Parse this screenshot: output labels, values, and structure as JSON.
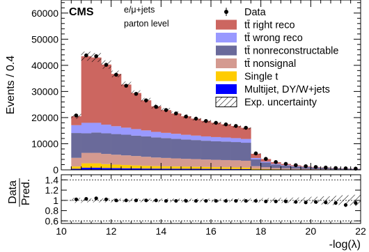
{
  "chart_data": {
    "type": "bar",
    "subtype": "stacked-histogram-with-ratio",
    "experiment_label": "CMS",
    "annotations": [
      "e/μ+jets",
      "parton level"
    ],
    "xlabel": "-log(λ)",
    "ylabel": "Events / 0.4",
    "ratio_ylabel_top": "Data",
    "ratio_ylabel_bottom": "Pred.",
    "xlim": [
      10,
      22
    ],
    "ylim": [
      0,
      65000
    ],
    "ratio_ylim": [
      0.55,
      1.5
    ],
    "x_ticks": [
      10,
      12,
      14,
      16,
      18,
      20,
      22
    ],
    "y_ticks": [
      0,
      10000,
      20000,
      30000,
      40000,
      50000,
      60000
    ],
    "y_tick_labels": [
      "0",
      "10000",
      "20000",
      "30000",
      "40000",
      "50000",
      "60000"
    ],
    "ratio_ticks": [
      0.6,
      0.8,
      1,
      1.2,
      1.4
    ],
    "ratio_tick_labels": [
      "0.6",
      "0.8",
      "1",
      "1.2",
      "1.4"
    ],
    "ratio_reference_lines": [
      0.6,
      1.0,
      1.4
    ],
    "bin_edges": [
      10.4,
      10.8,
      11.2,
      11.6,
      12.0,
      12.4,
      12.8,
      13.2,
      13.6,
      14.0,
      14.4,
      14.8,
      15.2,
      15.6,
      16.0,
      16.4,
      16.8,
      17.2,
      17.6,
      18.0,
      18.4,
      18.8,
      19.2,
      19.6,
      20.0,
      20.4,
      20.8,
      21.2,
      21.6,
      22.0
    ],
    "series": [
      {
        "name": "Multijet, DY/W+jets",
        "color": "#0000ff",
        "values": [
          400,
          800,
          800,
          700,
          650,
          600,
          550,
          500,
          480,
          460,
          440,
          420,
          400,
          380,
          360,
          340,
          320,
          300,
          150,
          100,
          80,
          60,
          50,
          40,
          30,
          25,
          20,
          15,
          10
        ]
      },
      {
        "name": "Single t",
        "color": "#ffcc00",
        "values": [
          900,
          1700,
          1700,
          1500,
          1350,
          1250,
          1150,
          1050,
          950,
          900,
          850,
          800,
          760,
          720,
          680,
          650,
          620,
          580,
          250,
          200,
          160,
          130,
          100,
          80,
          60,
          50,
          40,
          30,
          20
        ]
      },
      {
        "name": "tt̄ nonsignal",
        "color": "#d49a90",
        "values": [
          3300,
          4000,
          4000,
          3900,
          3800,
          3700,
          3600,
          3450,
          3300,
          3200,
          3100,
          3000,
          2950,
          2850,
          2800,
          2750,
          2700,
          2600,
          1000,
          700,
          500,
          420,
          330,
          260,
          200,
          160,
          120,
          100,
          80
        ]
      },
      {
        "name": "tt̄ nonreconstructable",
        "color": "#6a6a9a",
        "values": [
          9500,
          7500,
          7800,
          7900,
          7900,
          7900,
          7800,
          7800,
          7700,
          7600,
          7500,
          7400,
          7300,
          7200,
          7100,
          7100,
          7000,
          6900,
          2600,
          1800,
          1300,
          1000,
          800,
          650,
          520,
          420,
          350,
          280,
          230
        ]
      },
      {
        "name": "tt̄ wrong reco",
        "color": "#9999ff",
        "values": [
          3000,
          4000,
          3700,
          3300,
          3000,
          2700,
          2500,
          2300,
          2100,
          2000,
          1900,
          1800,
          1700,
          1650,
          1600,
          1550,
          1500,
          1450,
          550,
          350,
          250,
          190,
          150,
          120,
          90,
          70,
          60,
          50,
          40
        ]
      },
      {
        "name": "tt̄ right reco",
        "color": "#cc6660",
        "values": [
          3400,
          25500,
          25000,
          23000,
          20000,
          16500,
          13800,
          11500,
          9800,
          8700,
          7800,
          7100,
          6500,
          5950,
          5500,
          5050,
          4650,
          4270,
          1600,
          1000,
          660,
          460,
          340,
          260,
          200,
          150,
          120,
          100,
          80
        ]
      }
    ],
    "data": {
      "name": "Data",
      "values": [
        20800,
        43800,
        43500,
        40200,
        36400,
        32200,
        29100,
        26600,
        24100,
        22900,
        21600,
        20400,
        19600,
        18700,
        18000,
        17400,
        16800,
        16100,
        6300,
        4200,
        3000,
        2300,
        1800,
        1400,
        1100,
        880,
        700,
        580,
        470
      ]
    },
    "ratio_values": [
      1.02,
      1.03,
      1.04,
      1.02,
      1.0,
      1.0,
      1.0,
      1.0,
      1.0,
      0.99,
      0.99,
      0.99,
      0.99,
      0.99,
      0.99,
      0.99,
      0.99,
      0.99,
      0.99,
      0.98,
      0.98,
      0.98,
      0.97,
      0.96,
      0.97,
      0.96,
      0.95,
      0.91,
      0.95
    ],
    "uncertainty_label": "Exp. uncertainty",
    "uncertainty_fraction": [
      0.05,
      0.04,
      0.04,
      0.04,
      0.035,
      0.035,
      0.035,
      0.035,
      0.035,
      0.035,
      0.035,
      0.035,
      0.035,
      0.035,
      0.035,
      0.035,
      0.035,
      0.04,
      0.04,
      0.045,
      0.05,
      0.05,
      0.055,
      0.06,
      0.07,
      0.08,
      0.09,
      0.1,
      0.11
    ],
    "legend": {
      "placement": "top-right",
      "entries": [
        {
          "label": "Data",
          "kind": "marker"
        },
        {
          "label": "tt̄ right reco",
          "kind": "fill",
          "color": "#cc6660"
        },
        {
          "label": "tt̄ wrong reco",
          "kind": "fill",
          "color": "#9999ff"
        },
        {
          "label": "tt̄ nonreconstructable",
          "kind": "fill",
          "color": "#6a6a9a"
        },
        {
          "label": "tt̄ nonsignal",
          "kind": "fill",
          "color": "#d49a90"
        },
        {
          "label": "Single t",
          "kind": "fill",
          "color": "#ffcc00"
        },
        {
          "label": "Multijet, DY/W+jets",
          "kind": "fill",
          "color": "#0000ff"
        },
        {
          "label": "Exp. uncertainty",
          "kind": "hatch"
        }
      ]
    }
  }
}
